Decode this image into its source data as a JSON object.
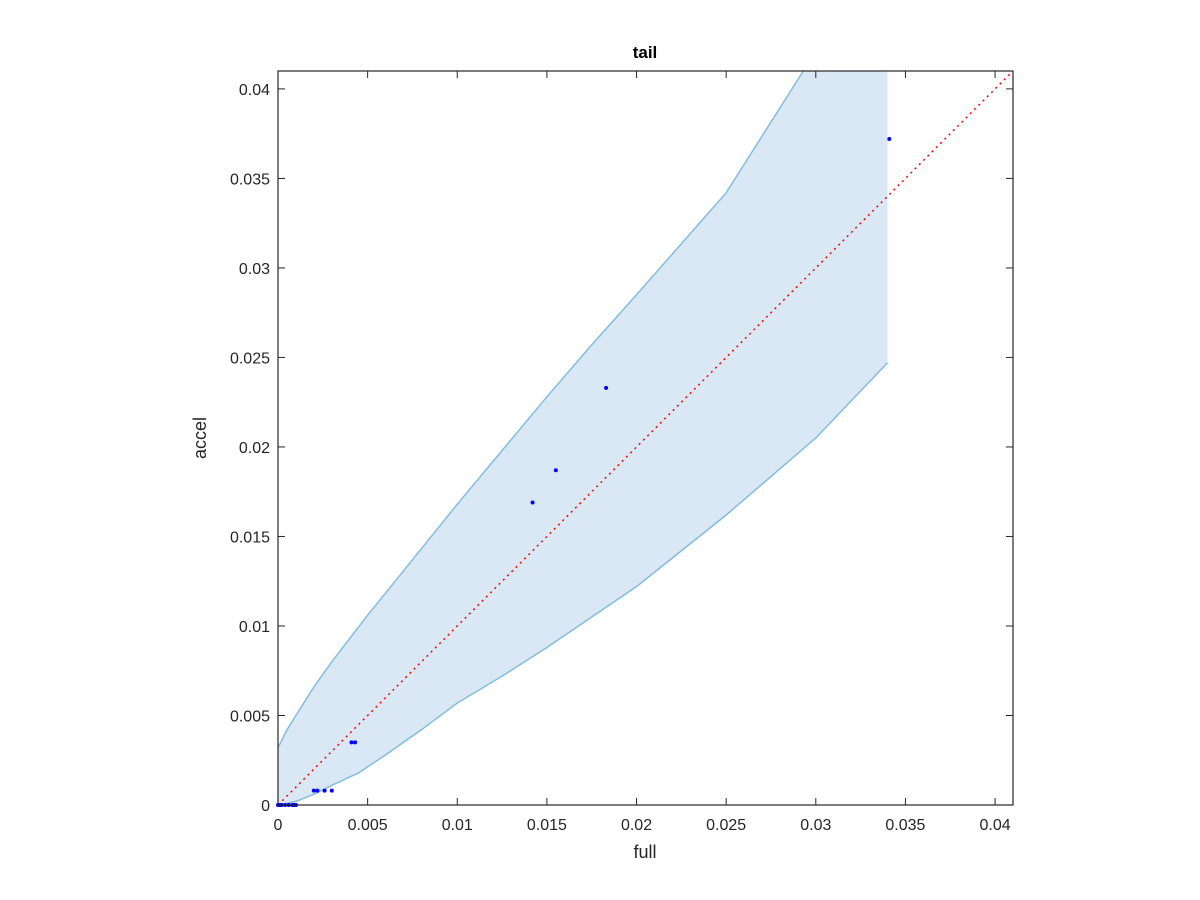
{
  "chart_data": {
    "type": "scatter",
    "title": "tail",
    "xlabel": "full",
    "ylabel": "accel",
    "xlim": [
      0,
      0.041
    ],
    "ylim": [
      0,
      0.041
    ],
    "xticks": [
      0,
      0.005,
      0.01,
      0.015,
      0.02,
      0.025,
      0.03,
      0.035,
      0.04
    ],
    "xtick_labels": [
      "0",
      "0.005",
      "0.01",
      "0.015",
      "0.02",
      "0.025",
      "0.03",
      "0.035",
      "0.04"
    ],
    "yticks": [
      0,
      0.005,
      0.01,
      0.015,
      0.02,
      0.025,
      0.03,
      0.035,
      0.04
    ],
    "ytick_labels": [
      "0",
      "0.005",
      "0.01",
      "0.015",
      "0.02",
      "0.025",
      "0.03",
      "0.035",
      "0.04"
    ],
    "grid": false,
    "band": {
      "upper": [
        {
          "x": 0,
          "y": 0.0032
        },
        {
          "x": 0.0005,
          "y": 0.0042
        },
        {
          "x": 0.001,
          "y": 0.005
        },
        {
          "x": 0.002,
          "y": 0.0066
        },
        {
          "x": 0.003,
          "y": 0.008
        },
        {
          "x": 0.004,
          "y": 0.0093
        },
        {
          "x": 0.005,
          "y": 0.0106
        },
        {
          "x": 0.0075,
          "y": 0.0137
        },
        {
          "x": 0.01,
          "y": 0.0168
        },
        {
          "x": 0.0125,
          "y": 0.0198
        },
        {
          "x": 0.015,
          "y": 0.0228
        },
        {
          "x": 0.0175,
          "y": 0.0257
        },
        {
          "x": 0.02,
          "y": 0.0285
        },
        {
          "x": 0.025,
          "y": 0.0342
        },
        {
          "x": 0.0293,
          "y": 0.041
        },
        {
          "x": 0.034,
          "y": 0.041
        }
      ],
      "lower": [
        {
          "x": 0,
          "y": 0
        },
        {
          "x": 0.001,
          "y": 0.0002
        },
        {
          "x": 0.002,
          "y": 0.0006
        },
        {
          "x": 0.003,
          "y": 0.0011
        },
        {
          "x": 0.0045,
          "y": 0.0018
        },
        {
          "x": 0.006,
          "y": 0.0028
        },
        {
          "x": 0.008,
          "y": 0.0042
        },
        {
          "x": 0.01,
          "y": 0.0057
        },
        {
          "x": 0.0125,
          "y": 0.0072
        },
        {
          "x": 0.015,
          "y": 0.0088
        },
        {
          "x": 0.0175,
          "y": 0.0105
        },
        {
          "x": 0.02,
          "y": 0.0122
        },
        {
          "x": 0.025,
          "y": 0.0162
        },
        {
          "x": 0.03,
          "y": 0.0205
        },
        {
          "x": 0.034,
          "y": 0.0247
        }
      ]
    },
    "reference_line": {
      "from": [
        0,
        0
      ],
      "to": [
        0.041,
        0.041
      ]
    },
    "points": [
      {
        "x": 0,
        "y": 0
      },
      {
        "x": 0.0001,
        "y": 0
      },
      {
        "x": 0.0002,
        "y": 0
      },
      {
        "x": 0.0004,
        "y": 0
      },
      {
        "x": 0.0006,
        "y": 0
      },
      {
        "x": 0.0008,
        "y": 0
      },
      {
        "x": 0.0009,
        "y": 0
      },
      {
        "x": 0.001,
        "y": 0
      },
      {
        "x": 0.002,
        "y": 0.0008
      },
      {
        "x": 0.0022,
        "y": 0.0008
      },
      {
        "x": 0.0026,
        "y": 0.0008
      },
      {
        "x": 0.003,
        "y": 0.0008
      },
      {
        "x": 0.0041,
        "y": 0.0035
      },
      {
        "x": 0.0043,
        "y": 0.0035
      },
      {
        "x": 0.0142,
        "y": 0.0169
      },
      {
        "x": 0.0155,
        "y": 0.0187
      },
      {
        "x": 0.0183,
        "y": 0.0233
      },
      {
        "x": 0.0341,
        "y": 0.0372
      }
    ],
    "colors": {
      "band_fill": "#d9e8f4",
      "band_edge": "#82bde0",
      "points": "#0000ff",
      "reference": "#ff0000",
      "axes": "#262626"
    }
  }
}
